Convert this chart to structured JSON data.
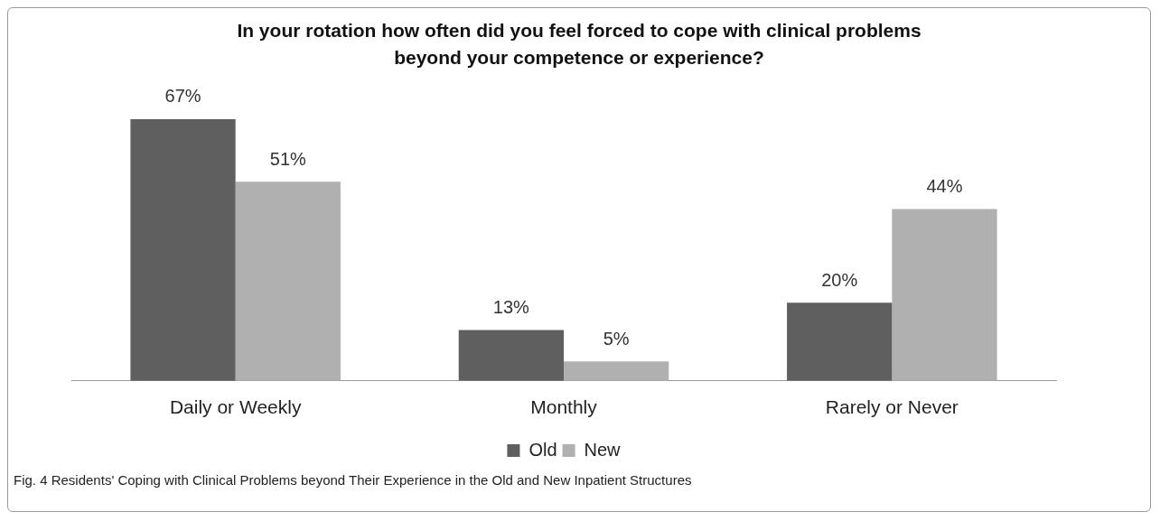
{
  "chart_data": {
    "type": "bar",
    "title": "In your rotation how often did you feel forced to cope with clinical problems beyond your competence or experience?",
    "categories": [
      "Daily or Weekly",
      "Monthly",
      "Rarely or Never"
    ],
    "series": [
      {
        "name": "Old",
        "color": "#5f5f5f",
        "values": [
          67,
          13,
          20
        ],
        "value_labels": [
          "67%",
          "13%",
          "20%"
        ]
      },
      {
        "name": "New",
        "color": "#b0b0b0",
        "values": [
          51,
          5,
          44
        ],
        "value_labels": [
          "51%",
          "5%",
          "44%"
        ]
      }
    ],
    "legend": "bottom",
    "grid": false,
    "annotations": [
      "Fig. 4 Residents' Coping with Clinical Problems beyond Their Experience in the Old and New Inpatient Structures"
    ]
  }
}
